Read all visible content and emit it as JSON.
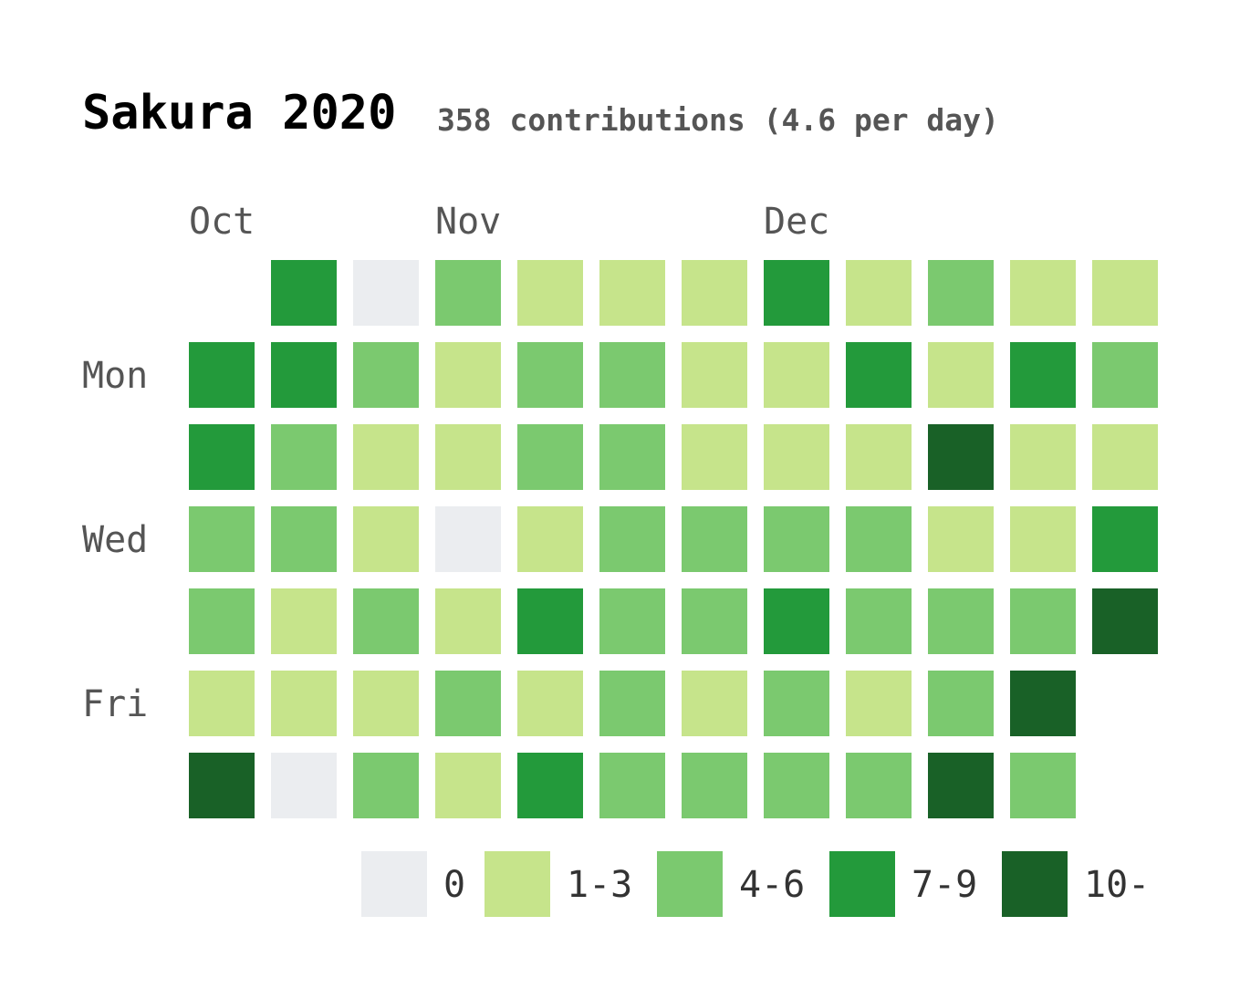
{
  "header": {
    "title": "Sakura 2020",
    "subtitle": "358 contributions (4.6 per day)"
  },
  "chart_data": {
    "type": "heatmap",
    "title": "Sakura 2020",
    "subtitle": "358 contributions (4.6 per day)",
    "months": [
      {
        "label": "Oct",
        "week": 0
      },
      {
        "label": "Nov",
        "week": 3
      },
      {
        "label": "Dec",
        "week": 7
      }
    ],
    "day_labels": [
      {
        "label": "Mon",
        "day": 1
      },
      {
        "label": "Wed",
        "day": 3
      },
      {
        "label": "Fri",
        "day": 5
      }
    ],
    "weeks": 12,
    "levels": [
      [
        null,
        3,
        3,
        2,
        2,
        1,
        4
      ],
      [
        3,
        3,
        2,
        2,
        1,
        1,
        0
      ],
      [
        0,
        2,
        1,
        1,
        2,
        1,
        2
      ],
      [
        2,
        1,
        1,
        0,
        1,
        2,
        1
      ],
      [
        1,
        2,
        2,
        1,
        3,
        1,
        3
      ],
      [
        1,
        2,
        2,
        2,
        2,
        2,
        2
      ],
      [
        1,
        1,
        1,
        2,
        2,
        1,
        2
      ],
      [
        3,
        1,
        1,
        2,
        3,
        2,
        2
      ],
      [
        1,
        3,
        1,
        2,
        2,
        1,
        2
      ],
      [
        2,
        1,
        4,
        1,
        2,
        2,
        4
      ],
      [
        1,
        3,
        1,
        1,
        2,
        4,
        2
      ],
      [
        1,
        2,
        1,
        3,
        4,
        null,
        null
      ]
    ],
    "legend": [
      {
        "label": "0",
        "color": "#ebedf0"
      },
      {
        "label": "1-3",
        "color": "#c6e48b"
      },
      {
        "label": "4-6",
        "color": "#7bc96f"
      },
      {
        "label": "7-9",
        "color": "#239a3b"
      },
      {
        "label": "10-",
        "color": "#196127"
      }
    ]
  }
}
